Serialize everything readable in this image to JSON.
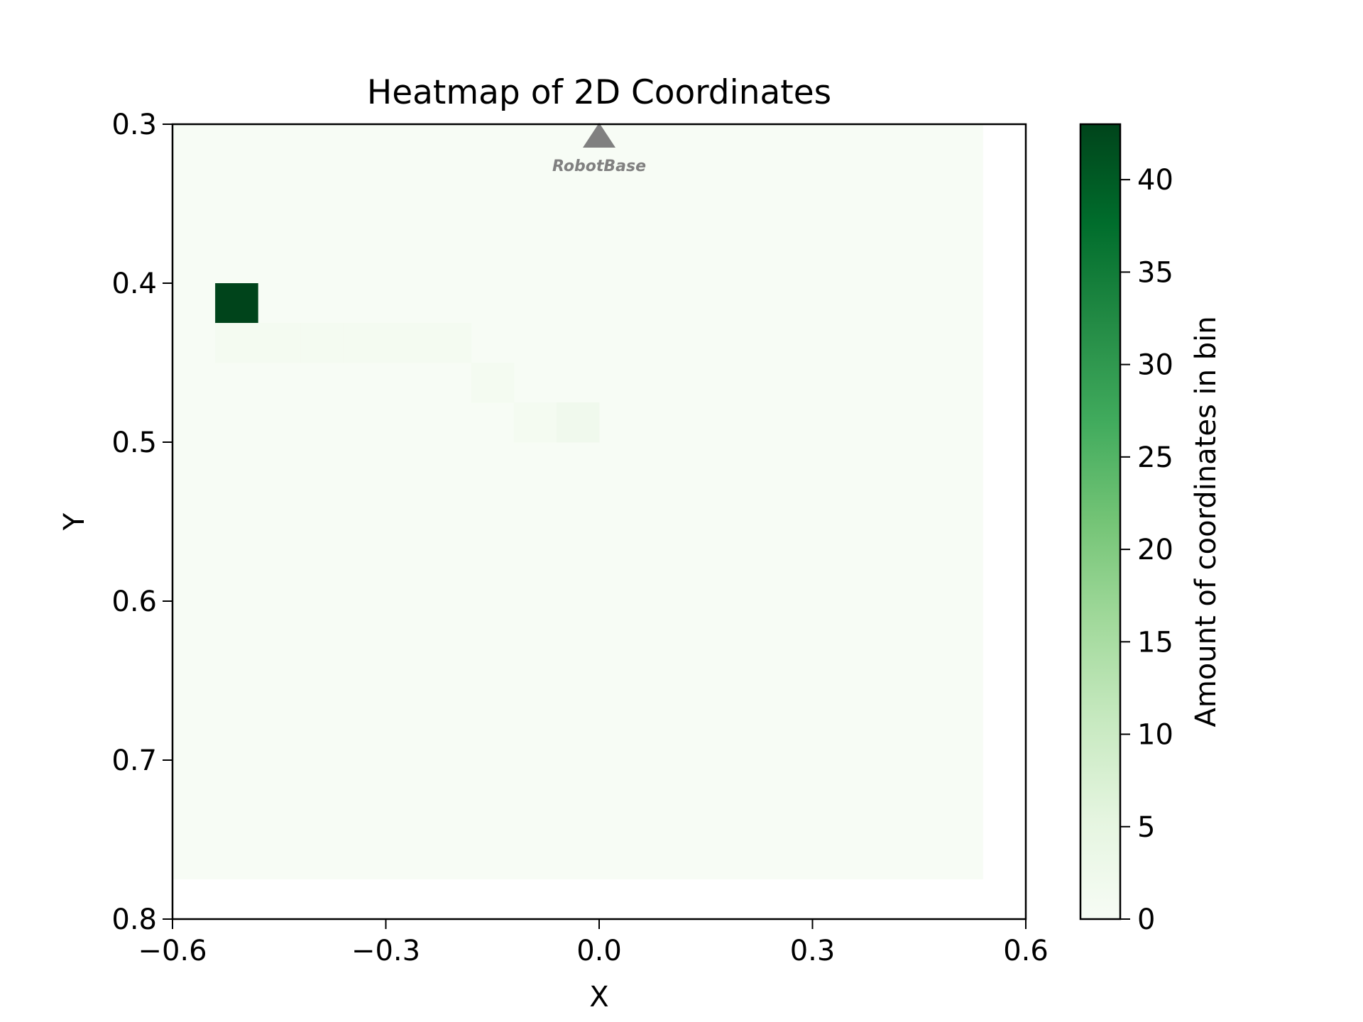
{
  "chart_data": {
    "type": "heatmap",
    "title": "Heatmap of 2D Coordinates",
    "xlabel": "X",
    "ylabel": "Y",
    "xlim": [
      -0.6,
      0.6
    ],
    "ylim": [
      0.3,
      0.8
    ],
    "y_inverted": true,
    "x_ticks": [
      -0.6,
      -0.3,
      0.0,
      0.3,
      0.6
    ],
    "x_tick_labels": [
      "−0.6",
      "−0.3",
      "0.0",
      "0.3",
      "0.6"
    ],
    "y_ticks": [
      0.3,
      0.4,
      0.5,
      0.6,
      0.7,
      0.8
    ],
    "y_tick_labels": [
      "0.3",
      "0.4",
      "0.5",
      "0.6",
      "0.7",
      "0.8"
    ],
    "colormap": "Greens",
    "grid": false,
    "colorbar": {
      "label": "Amount of coordinates in bin",
      "range": [
        0,
        43
      ],
      "ticks": [
        0,
        5,
        10,
        15,
        20,
        25,
        30,
        35,
        40
      ]
    },
    "heat_extent": {
      "x": [
        -0.6,
        0.54
      ],
      "y": [
        0.3,
        0.775
      ]
    },
    "bin_size": {
      "x": 0.06,
      "y": 0.025
    },
    "background_value": 0,
    "cells": [
      {
        "x": -0.54,
        "y": 0.4,
        "value": 43
      },
      {
        "x": -0.54,
        "y": 0.425,
        "value": 1
      },
      {
        "x": -0.48,
        "y": 0.425,
        "value": 1
      },
      {
        "x": -0.42,
        "y": 0.425,
        "value": 1
      },
      {
        "x": -0.36,
        "y": 0.425,
        "value": 1
      },
      {
        "x": -0.3,
        "y": 0.425,
        "value": 1
      },
      {
        "x": -0.24,
        "y": 0.425,
        "value": 1
      },
      {
        "x": -0.18,
        "y": 0.45,
        "value": 1
      },
      {
        "x": -0.12,
        "y": 0.475,
        "value": 1
      },
      {
        "x": -0.06,
        "y": 0.475,
        "value": 2
      }
    ],
    "annotations": [
      {
        "text": "RobotBase",
        "x": 0.0,
        "y": 0.3,
        "marker": "triangle-up",
        "color": "#808080"
      }
    ]
  }
}
